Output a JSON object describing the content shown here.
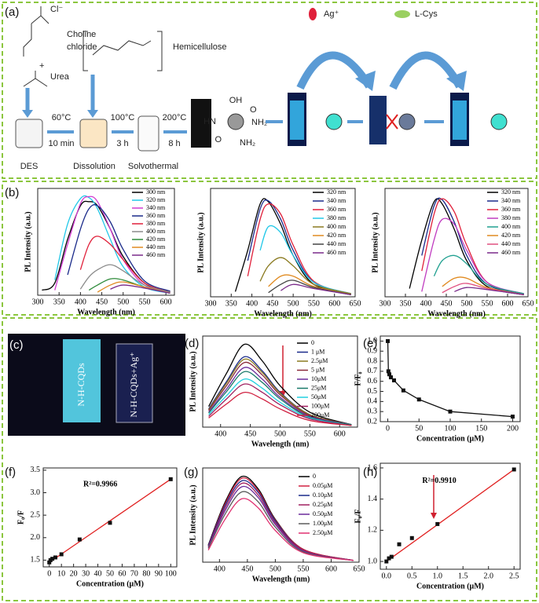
{
  "panel_labels": [
    "(a)",
    "(b)",
    "(c)",
    "(d)",
    "(e)",
    "(f)",
    "(g)",
    "(h)"
  ],
  "scheme": {
    "chloride_ion": "Cl⁻",
    "choline": "Choline",
    "chloride": "chloride",
    "plus": "+",
    "urea": "Urea",
    "hemicellulose": "Hemicellulose",
    "step1_temp": "60°C",
    "step1_time": "10 min",
    "step2_temp": "100°C",
    "step2_time": "3 h",
    "step3_temp": "200°C",
    "step3_time": "8 h",
    "des": "DES",
    "dissolution": "Dissolution",
    "solvothermal": "Solvothermal",
    "ag": "Ag⁺",
    "lcys": "L-Cys",
    "groups": [
      "OH",
      "O",
      "HN",
      "NH₂",
      "NH₂",
      "O"
    ]
  },
  "photo": {
    "left": "N-H-CQDs",
    "right": "N-H-CQDs+Ag⁺"
  },
  "chart_data": [
    {
      "type": "line",
      "x_label": "Wavelength (nm)",
      "y_label": "PL Intensity (a.u.)",
      "xlim": [
        300,
        620
      ],
      "xticks": [
        300,
        350,
        400,
        450,
        500,
        550,
        600
      ],
      "ylim": [
        0,
        105
      ],
      "x": [
        310,
        340,
        370,
        400,
        420,
        440,
        470,
        500,
        550,
        610
      ],
      "series": [
        {
          "name": "300 nm",
          "color": "#000000",
          "values": [
            5,
            12,
            55,
            88,
            92,
            88,
            65,
            38,
            12,
            3
          ]
        },
        {
          "name": "320 nm",
          "color": "#22c8e8",
          "values": [
            null,
            15,
            70,
            95,
            96,
            85,
            55,
            28,
            8,
            2
          ]
        },
        {
          "name": "340 nm",
          "color": "#d03cd0",
          "values": [
            null,
            5,
            50,
            90,
            97,
            92,
            65,
            35,
            10,
            3
          ]
        },
        {
          "name": "360 nm",
          "color": "#1a2a8a",
          "values": [
            null,
            null,
            20,
            65,
            85,
            88,
            72,
            45,
            14,
            4
          ]
        },
        {
          "name": "380 nm",
          "color": "#e0203a",
          "values": [
            null,
            null,
            null,
            25,
            50,
            58,
            50,
            35,
            12,
            3
          ]
        },
        {
          "name": "400 nm",
          "color": "#8a8a8a",
          "values": [
            null,
            null,
            null,
            6,
            18,
            25,
            30,
            24,
            10,
            3
          ]
        },
        {
          "name": "420 nm",
          "color": "#2e8b3a",
          "values": [
            null,
            null,
            null,
            null,
            5,
            10,
            16,
            15,
            8,
            2
          ]
        },
        {
          "name": "440 nm",
          "color": "#e08a20",
          "values": [
            null,
            null,
            null,
            null,
            null,
            3,
            10,
            13,
            8,
            2
          ]
        },
        {
          "name": "460 nm",
          "color": "#7a2a8a",
          "values": [
            null,
            null,
            null,
            null,
            null,
            null,
            6,
            10,
            7,
            2
          ]
        }
      ]
    },
    {
      "type": "line",
      "x_label": "Wavelength (nm)",
      "y_label": "PL Intensity (a.u.)",
      "xlim": [
        300,
        650
      ],
      "xticks": [
        300,
        350,
        400,
        450,
        500,
        550,
        600,
        650
      ],
      "ylim": [
        0,
        105
      ],
      "x": [
        330,
        360,
        390,
        420,
        440,
        470,
        500,
        550,
        640
      ],
      "series": [
        {
          "name": "320 nm",
          "color": "#000000",
          "values": [
            null,
            5,
            45,
            90,
            92,
            70,
            40,
            12,
            2
          ]
        },
        {
          "name": "340 nm",
          "color": "#1a2a8a",
          "values": [
            null,
            null,
            35,
            85,
            93,
            75,
            45,
            14,
            3
          ]
        },
        {
          "name": "360 nm",
          "color": "#e0203a",
          "values": [
            null,
            null,
            20,
            75,
            90,
            80,
            50,
            15,
            3
          ]
        },
        {
          "name": "380 nm",
          "color": "#22c8e8",
          "values": [
            null,
            null,
            null,
            45,
            68,
            62,
            40,
            14,
            3
          ]
        },
        {
          "name": "400 nm",
          "color": "#8a7a20",
          "values": [
            null,
            null,
            null,
            15,
            30,
            38,
            30,
            12,
            3
          ]
        },
        {
          "name": "420 nm",
          "color": "#e08a20",
          "values": [
            null,
            null,
            null,
            null,
            10,
            20,
            20,
            10,
            2
          ]
        },
        {
          "name": "440 nm",
          "color": "#444444",
          "values": [
            null,
            null,
            null,
            null,
            4,
            12,
            16,
            9,
            2
          ]
        },
        {
          "name": "460 nm",
          "color": "#7a2a8a",
          "values": [
            null,
            null,
            null,
            null,
            null,
            6,
            12,
            8,
            2
          ]
        }
      ]
    },
    {
      "type": "line",
      "x_label": "Wavelength (nm)",
      "y_label": "PL Intensity (a.u.)",
      "xlim": [
        300,
        650
      ],
      "xticks": [
        300,
        350,
        400,
        450,
        500,
        550,
        600,
        650
      ],
      "ylim": [
        0,
        105
      ],
      "x": [
        330,
        360,
        390,
        420,
        440,
        470,
        500,
        550,
        640
      ],
      "series": [
        {
          "name": "320 nm",
          "color": "#000000",
          "values": [
            null,
            8,
            55,
            92,
            90,
            65,
            35,
            10,
            2
          ]
        },
        {
          "name": "340 nm",
          "color": "#1a2a8a",
          "values": [
            null,
            null,
            40,
            88,
            94,
            72,
            40,
            12,
            2
          ]
        },
        {
          "name": "360 nm",
          "color": "#e0203a",
          "values": [
            null,
            null,
            25,
            80,
            95,
            82,
            50,
            14,
            3
          ]
        },
        {
          "name": "380 nm",
          "color": "#c03cc0",
          "values": [
            null,
            null,
            5,
            55,
            75,
            70,
            45,
            14,
            3
          ]
        },
        {
          "name": "400 nm",
          "color": "#20a090",
          "values": [
            null,
            null,
            null,
            20,
            35,
            40,
            32,
            12,
            3
          ]
        },
        {
          "name": "420 nm",
          "color": "#e08a20",
          "values": [
            null,
            null,
            null,
            null,
            10,
            18,
            18,
            9,
            2
          ]
        },
        {
          "name": "440 nm",
          "color": "#e05080",
          "values": [
            null,
            null,
            null,
            null,
            4,
            10,
            13,
            8,
            2
          ]
        },
        {
          "name": "460 nm",
          "color": "#7a2a8a",
          "values": [
            null,
            null,
            null,
            null,
            null,
            5,
            9,
            7,
            2
          ]
        }
      ]
    },
    {
      "type": "line",
      "x_label": "Wavelength (nm)",
      "y_label": "PL Intensity (a.u.)",
      "xlim": [
        370,
        630
      ],
      "xticks": [
        400,
        450,
        500,
        550,
        600
      ],
      "ylim": [
        0,
        110
      ],
      "x": [
        380,
        410,
        440,
        470,
        500,
        550,
        620
      ],
      "series": [
        {
          "name": "0",
          "color": "#000000",
          "values": [
            25,
            65,
            100,
            80,
            50,
            18,
            3
          ]
        },
        {
          "name": "1 μM",
          "color": "#1a2a8a",
          "values": [
            22,
            55,
            85,
            68,
            42,
            15,
            3
          ]
        },
        {
          "name": "2.5μM",
          "color": "#8a7a20",
          "values": [
            21,
            53,
            82,
            66,
            41,
            15,
            3
          ]
        },
        {
          "name": "5 μM",
          "color": "#8a2a3a",
          "values": [
            20,
            50,
            78,
            63,
            39,
            14,
            3
          ]
        },
        {
          "name": "10μM",
          "color": "#6a2a9a",
          "values": [
            18,
            46,
            72,
            58,
            36,
            13,
            3
          ]
        },
        {
          "name": "25μM",
          "color": "#1a7a6a",
          "values": [
            17,
            43,
            67,
            54,
            34,
            12,
            3
          ]
        },
        {
          "name": "50μM",
          "color": "#22d0e0",
          "values": [
            15,
            38,
            58,
            47,
            30,
            11,
            2
          ]
        },
        {
          "name": "100μM",
          "color": "#a02060",
          "values": [
            13,
            34,
            52,
            42,
            27,
            10,
            2
          ]
        },
        {
          "name": "200μM",
          "color": "#d02040",
          "values": [
            11,
            28,
            42,
            34,
            22,
            8,
            2
          ]
        }
      ]
    },
    {
      "type": "line",
      "markers": true,
      "x_label": "Concentration (μM)",
      "y_label": "F/F₀",
      "color": "#111111",
      "xlim": [
        -12,
        212
      ],
      "xticks": [
        0,
        50,
        100,
        150,
        200
      ],
      "ylim": [
        0.2,
        1.05
      ],
      "yticks": [
        0.2,
        0.3,
        0.4,
        0.5,
        0.6,
        0.7,
        0.8,
        0.9,
        {
          "value": 1,
          "label": "1.0"
        }
      ],
      "x": [
        0,
        1,
        2.5,
        5,
        10,
        25,
        50,
        100,
        200
      ],
      "values": [
        1,
        0.7,
        0.67,
        0.64,
        0.61,
        0.51,
        0.42,
        0.3,
        0.25
      ]
    },
    {
      "type": "scatter",
      "x_label": "Concentration (μM)",
      "y_label": "F₀/F",
      "color": "#111111",
      "fit_color": "#e02020",
      "annotation": "R²=0.9966",
      "xlim": [
        -5,
        105
      ],
      "xticks": [
        0,
        10,
        20,
        30,
        40,
        50,
        60,
        70,
        80,
        90,
        100
      ],
      "ylim": [
        1.35,
        3.55
      ],
      "yticks": [
        1.5,
        {
          "value": 2,
          "label": "2.0"
        },
        2.5,
        {
          "value": 3,
          "label": "3.0"
        },
        3.5
      ],
      "x": [
        0,
        1,
        2.5,
        5,
        10,
        25,
        50,
        100
      ],
      "values": [
        1.45,
        1.5,
        1.53,
        1.56,
        1.63,
        1.96,
        2.33,
        3.3
      ],
      "fit": {
        "x": [
          0,
          100
        ],
        "values": [
          1.45,
          3.3
        ]
      }
    },
    {
      "type": "line",
      "x_label": "Wavelength (nm)",
      "y_label": "PL Intensity (a.u.)",
      "xlim": [
        370,
        650
      ],
      "xticks": [
        400,
        450,
        500,
        550,
        600,
        650
      ],
      "ylim": [
        0,
        110
      ],
      "x": [
        380,
        410,
        440,
        470,
        500,
        550,
        640
      ],
      "series": [
        {
          "name": "0",
          "color": "#000000",
          "values": [
            20,
            70,
            100,
            85,
            50,
            15,
            2
          ]
        },
        {
          "name": "0.05μM",
          "color": "#d02040",
          "values": [
            19,
            68,
            98,
            83,
            49,
            15,
            2
          ]
        },
        {
          "name": "0.10μM",
          "color": "#1a2a8a",
          "values": [
            19,
            66,
            95,
            81,
            48,
            14,
            2
          ]
        },
        {
          "name": "0.25μM",
          "color": "#a02060",
          "values": [
            18,
            63,
            92,
            78,
            46,
            14,
            2
          ]
        },
        {
          "name": "0.50μM",
          "color": "#6a2a9a",
          "values": [
            17,
            60,
            88,
            75,
            44,
            13,
            2
          ]
        },
        {
          "name": "1.00μM",
          "color": "#5a5a5a",
          "values": [
            16,
            56,
            82,
            70,
            41,
            12,
            2
          ]
        },
        {
          "name": "2.50μM",
          "color": "#e03070",
          "values": [
            14,
            50,
            74,
            63,
            37,
            11,
            2
          ]
        }
      ]
    },
    {
      "type": "scatter",
      "x_label": "Concentration (μM)",
      "y_label": "F₀/F",
      "color": "#111111",
      "fit_color": "#e02020",
      "annotation": "R²=0.9910",
      "xlim": [
        -0.12,
        2.62
      ],
      "xticks": [
        {
          "value": 0,
          "label": "0.0"
        },
        0.5,
        {
          "value": 1,
          "label": "1.0"
        },
        1.5,
        {
          "value": 2,
          "label": "2.0"
        },
        2.5
      ],
      "ylim": [
        0.95,
        1.63
      ],
      "yticks": [
        {
          "value": 1,
          "label": "1.0"
        },
        1.2,
        1.4,
        1.6
      ],
      "x": [
        0,
        0.05,
        0.1,
        0.25,
        0.5,
        1,
        2.5
      ],
      "values": [
        1,
        1.02,
        1.03,
        1.11,
        1.15,
        1.24,
        1.59
      ],
      "fit": {
        "x": [
          0,
          2.5
        ],
        "values": [
          1,
          1.59
        ]
      }
    }
  ]
}
